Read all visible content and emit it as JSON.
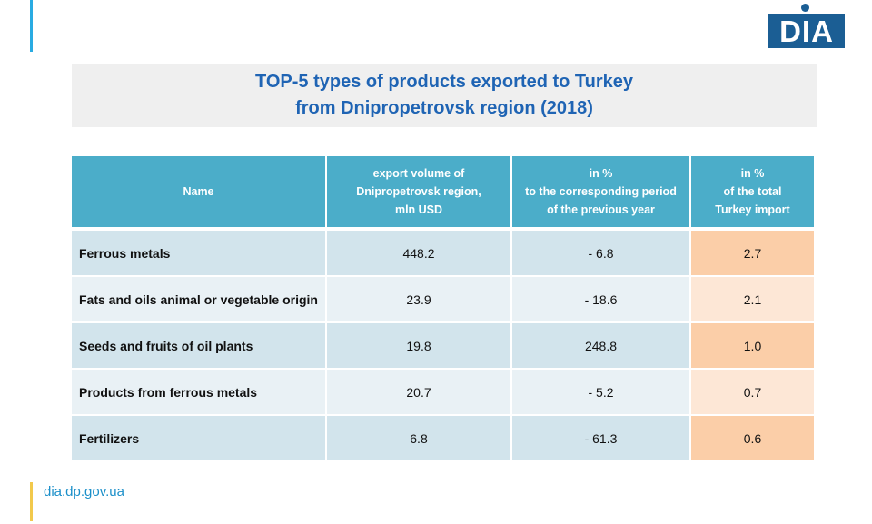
{
  "logo": {
    "text": "DIA"
  },
  "title": {
    "line1": "TOP-5 types of products exported to Turkey",
    "line2": "from Dnipropetrovsk region (2018)"
  },
  "table": {
    "headers": [
      {
        "lines": [
          "Name"
        ]
      },
      {
        "lines": [
          "export volume of",
          "Dnipropetrovsk region,",
          "mln USD"
        ]
      },
      {
        "lines": [
          "in %",
          "to the corresponding period",
          "of the previous year"
        ]
      },
      {
        "lines": [
          "in %",
          "of the total",
          "Turkey import"
        ]
      }
    ],
    "rows": [
      {
        "name": "Ferrous metals",
        "volume": "448.2",
        "change": "- 6.8",
        "share": "2.7"
      },
      {
        "name": "Fats and oils animal or vegetable origin",
        "volume": "23.9",
        "change": "- 18.6",
        "share": "2.1"
      },
      {
        "name": "Seeds and fruits of oil plants",
        "volume": "19.8",
        "change": "248.8",
        "share": "1.0"
      },
      {
        "name": "Products from ferrous metals",
        "volume": "20.7",
        "change": "- 5.2",
        "share": "0.7"
      },
      {
        "name": "Fertilizers",
        "volume": "6.8",
        "change": "- 61.3",
        "share": "0.6"
      }
    ]
  },
  "footer": {
    "website": "dia.dp.gov.ua"
  },
  "colors": {
    "accent_blue": "#29abe2",
    "accent_yellow": "#f2c94c",
    "logo_blue": "#1b5e94",
    "title_blue": "#1f64b4",
    "header_teal": "#4badc9",
    "negative_red": "#d0241c",
    "share_orange": "#fbcea8"
  }
}
